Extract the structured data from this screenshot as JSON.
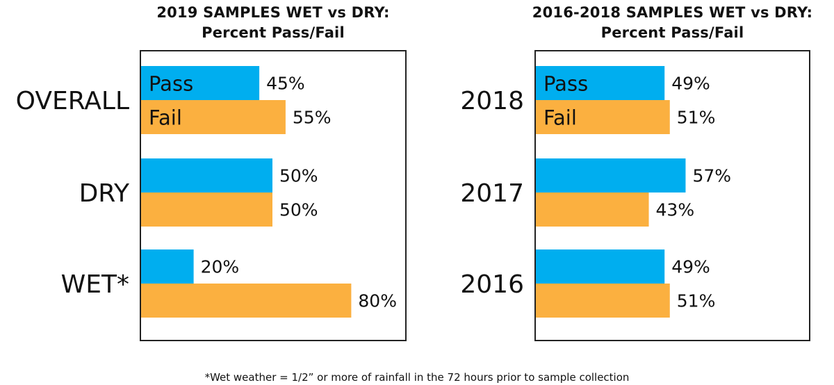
{
  "colors": {
    "pass": "#00AEEF",
    "fail": "#FBB040"
  },
  "chart_data": [
    {
      "type": "bar",
      "orientation": "horizontal",
      "title": [
        "2019 SAMPLES WET vs DRY:",
        "Percent Pass/Fail"
      ],
      "categories": [
        "OVERALL",
        "DRY",
        "WET*"
      ],
      "series": [
        {
          "name": "Pass",
          "values": [
            45,
            50,
            20
          ],
          "labels": [
            "45%",
            "50%",
            "20%"
          ]
        },
        {
          "name": "Fail",
          "values": [
            55,
            50,
            80
          ],
          "labels": [
            "55%",
            "50%",
            "80%"
          ]
        }
      ],
      "xlim": [
        0,
        100
      ],
      "grid": false
    },
    {
      "type": "bar",
      "orientation": "horizontal",
      "title": [
        "2016-2018 SAMPLES WET vs DRY:",
        "Percent Pass/Fail"
      ],
      "categories": [
        "2018",
        "2017",
        "2016"
      ],
      "series": [
        {
          "name": "Pass",
          "values": [
            49,
            57,
            49
          ],
          "labels": [
            "49%",
            "57%",
            "49%"
          ]
        },
        {
          "name": "Fail",
          "values": [
            51,
            43,
            51
          ],
          "labels": [
            "51%",
            "43%",
            "51%"
          ]
        }
      ],
      "xlim": [
        0,
        100
      ],
      "grid": false
    }
  ],
  "footnote": "*Wet weather = 1/2” or more of rainfall in the 72 hours prior to sample collection"
}
